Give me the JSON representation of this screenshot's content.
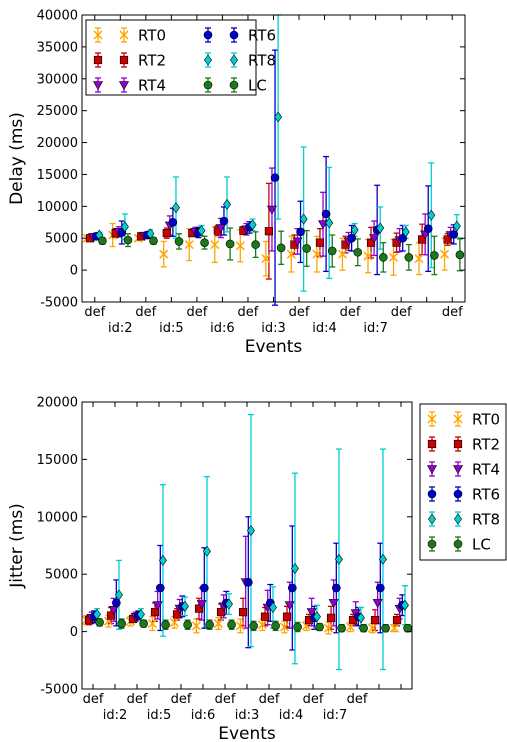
{
  "chart_data": [
    {
      "type": "scatter",
      "error_bars": true,
      "xlabel": "Events",
      "ylabel": "Delay (ms)",
      "ylim": [
        -5000,
        40000
      ],
      "yticks": [
        -5000,
        0,
        5000,
        10000,
        15000,
        20000,
        25000,
        30000,
        35000,
        40000
      ],
      "xtick_labels_top": [
        "def",
        "def",
        "def",
        "def",
        "def",
        "def",
        "def",
        "def"
      ],
      "xtick_labels_bottom": [
        "id:2",
        "id:5",
        "id:6",
        "id:3",
        "id:4",
        "id:7"
      ],
      "legend_position": "upper-left",
      "grid": false,
      "series": [
        {
          "name": "RT0",
          "color": "#FFA500",
          "marker": "x",
          "values": [
            5000,
            5500,
            5000,
            2500,
            4000,
            4000,
            3800,
            1800,
            2500,
            2500,
            2500,
            2200,
            2000,
            1800,
            2500
          ],
          "errors": [
            400,
            1800,
            400,
            2000,
            2500,
            2800,
            2500,
            2700,
            2800,
            2800,
            2500,
            2600,
            2800,
            2500,
            2500
          ]
        },
        {
          "name": "RT2",
          "color": "#CC0000",
          "marker": "square",
          "values": [
            5000,
            5800,
            5300,
            5800,
            5800,
            6200,
            6200,
            6100,
            4000,
            4300,
            4000,
            4300,
            4300,
            4800,
            4800
          ],
          "errors": [
            300,
            700,
            300,
            800,
            500,
            800,
            600,
            7500,
            1500,
            2200,
            1300,
            2400,
            1500,
            2400,
            900
          ]
        },
        {
          "name": "RT4",
          "color": "#9400D3",
          "marker": "triangle-down",
          "values": [
            5200,
            6000,
            5400,
            7000,
            6000,
            6600,
            6400,
            9500,
            4500,
            7200,
            4500,
            5000,
            4700,
            5600,
            5500
          ],
          "errors": [
            400,
            800,
            300,
            1500,
            700,
            1500,
            900,
            6500,
            2000,
            5000,
            1400,
            2700,
            1800,
            3200,
            1200
          ]
        },
        {
          "name": "RT6",
          "color": "#0000CC",
          "marker": "circle",
          "values": [
            5300,
            5900,
            5500,
            7500,
            5900,
            7700,
            6700,
            14500,
            6000,
            8800,
            5000,
            6300,
            5000,
            6500,
            5600
          ],
          "errors": [
            500,
            1800,
            500,
            2200,
            800,
            2200,
            900,
            20000,
            4800,
            9000,
            2000,
            7000,
            2000,
            6700,
            1500
          ]
        },
        {
          "name": "RT8",
          "color": "#00CED1",
          "marker": "diamond",
          "values": [
            5500,
            6800,
            5700,
            9800,
            6200,
            10300,
            7100,
            24000,
            8000,
            7400,
            6300,
            6600,
            6000,
            8600,
            6900
          ],
          "errors": [
            400,
            2000,
            600,
            4800,
            800,
            4300,
            900,
            16000,
            11300,
            8700,
            1000,
            3300,
            1000,
            8200,
            1800
          ]
        },
        {
          "name": "LC",
          "color": "#1A7A1A",
          "marker": "circle",
          "values": [
            4600,
            4700,
            4600,
            4500,
            4300,
            4100,
            4000,
            3500,
            3400,
            3000,
            2800,
            2000,
            2000,
            2300,
            2400
          ],
          "errors": [
            500,
            1000,
            500,
            1200,
            1000,
            2500,
            2000,
            2600,
            2800,
            2500,
            2100,
            2300,
            2000,
            3000,
            2500
          ]
        }
      ]
    },
    {
      "type": "scatter",
      "error_bars": true,
      "xlabel": "Events",
      "ylabel": "Jitter (ms)",
      "ylim": [
        -5000,
        20000
      ],
      "yticks": [
        -5000,
        0,
        5000,
        10000,
        15000,
        20000
      ],
      "xtick_labels_top": [
        "def",
        "def",
        "def",
        "def",
        "def",
        "def",
        "def"
      ],
      "xtick_labels_bottom": [
        "id:2",
        "id:5",
        "id:6",
        "id:3",
        "id:4",
        "id:7"
      ],
      "legend_position": "outside-right",
      "grid": false,
      "series": [
        {
          "name": "RT0",
          "color": "#FFA500",
          "marker": "x",
          "values": [
            1000,
            900,
            900,
            700,
            800,
            500,
            700,
            500,
            600,
            400,
            500,
            300,
            400,
            300,
            300
          ],
          "errors": [
            400,
            500,
            400,
            600,
            500,
            600,
            500,
            600,
            500,
            500,
            400,
            500,
            400,
            400,
            300
          ]
        },
        {
          "name": "RT2",
          "color": "#CC0000",
          "marker": "square",
          "values": [
            1000,
            1400,
            1100,
            1700,
            1500,
            2000,
            1700,
            1700,
            1300,
            1300,
            1000,
            1200,
            1000,
            1000,
            1000
          ],
          "errors": [
            400,
            700,
            300,
            800,
            500,
            900,
            700,
            1200,
            800,
            900,
            500,
            1000,
            500,
            900,
            500
          ]
        },
        {
          "name": "RT4",
          "color": "#9400D3",
          "marker": "triangle-down",
          "values": [
            1200,
            1900,
            1300,
            2300,
            2000,
            2400,
            2200,
            4300,
            2100,
            2300,
            1700,
            2500,
            1600,
            2500,
            2000
          ],
          "errors": [
            500,
            1000,
            400,
            1200,
            800,
            1400,
            1000,
            4000,
            1500,
            2000,
            1200,
            2000,
            1000,
            1800,
            900
          ]
        },
        {
          "name": "RT6",
          "color": "#0000CC",
          "marker": "circle",
          "values": [
            1300,
            2500,
            1400,
            3800,
            2200,
            3800,
            2500,
            4300,
            2500,
            3800,
            1200,
            3800,
            1300,
            3800,
            2300
          ],
          "errors": [
            500,
            2000,
            400,
            3700,
            900,
            3500,
            1000,
            5700,
            1600,
            5400,
            1000,
            3900,
            800,
            3900,
            900
          ]
        },
        {
          "name": "RT8",
          "color": "#00CED1",
          "marker": "diamond",
          "values": [
            1500,
            3200,
            1500,
            6200,
            2200,
            7000,
            2400,
            8800,
            2100,
            5500,
            1300,
            6300,
            1200,
            6300,
            2300
          ],
          "errors": [
            500,
            3000,
            500,
            6600,
            800,
            6500,
            900,
            10100,
            1800,
            8300,
            1000,
            9600,
            900,
            9600,
            1700
          ]
        },
        {
          "name": "LC",
          "color": "#1A7A1A",
          "marker": "circle",
          "values": [
            800,
            700,
            700,
            600,
            600,
            600,
            600,
            500,
            500,
            400,
            400,
            300,
            300,
            300,
            300
          ],
          "errors": [
            300,
            400,
            300,
            400,
            400,
            400,
            400,
            400,
            400,
            400,
            300,
            300,
            300,
            300,
            300
          ]
        }
      ]
    }
  ]
}
